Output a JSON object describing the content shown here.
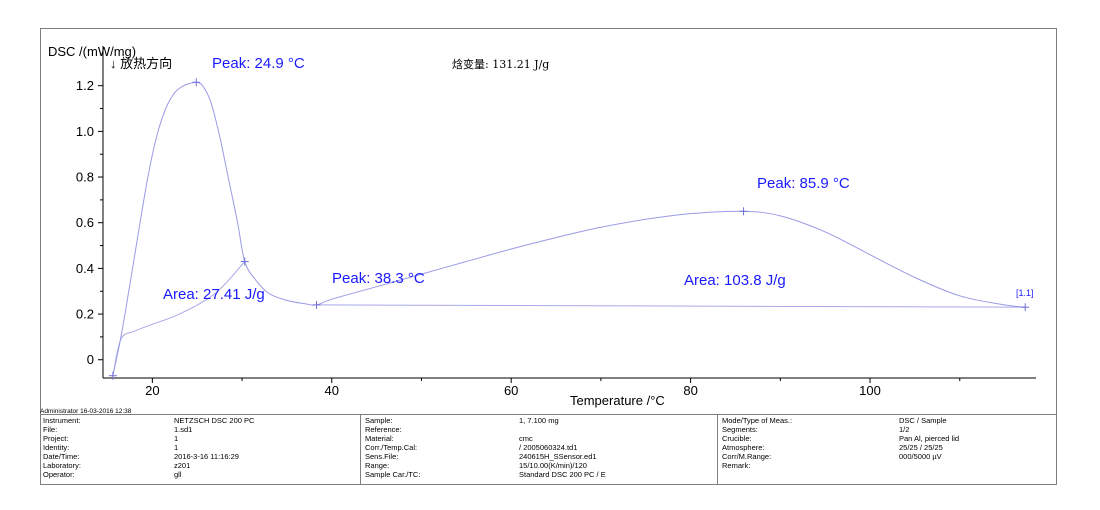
{
  "chart_data": {
    "type": "line",
    "ylabel": "DSC /(mW/mg)",
    "xlabel": "Temperature /°C",
    "exo_direction": "↓ 放热方向",
    "enthalpy_label": "焓变量: 131.21 J/g",
    "xlim": [
      14.5,
      118.5
    ],
    "ylim": [
      -0.08,
      1.26
    ],
    "x_ticks": [
      20,
      40,
      60,
      80,
      100
    ],
    "y_ticks": [
      0,
      0.2,
      0.4,
      0.6,
      0.8,
      1.0,
      1.2
    ],
    "x_tick_labels": [
      "20",
      "40",
      "60",
      "80",
      "100"
    ],
    "y_tick_labels": [
      "0",
      "0.2",
      "0.4",
      "0.6",
      "0.8",
      "1.0",
      "1.2"
    ],
    "grid": false,
    "series": [
      {
        "color": "#9a9ae6",
        "x": [
          15.6,
          16.5,
          17.5,
          18.5,
          19.5,
          20.5,
          21.5,
          22.5,
          23.5,
          24.2,
          24.9,
          25.6,
          26.5,
          27.5,
          28.5,
          29.5,
          30.3,
          31.5,
          33.0,
          35.0,
          37.0,
          38.3,
          40,
          45,
          50,
          55,
          60,
          65,
          70,
          75,
          80,
          85.9,
          90,
          95,
          100,
          105,
          110,
          115,
          117.3
        ],
        "y": [
          -0.07,
          0.1,
          0.33,
          0.57,
          0.8,
          0.98,
          1.1,
          1.17,
          1.2,
          1.21,
          1.215,
          1.2,
          1.13,
          0.98,
          0.79,
          0.6,
          0.43,
          0.35,
          0.29,
          0.26,
          0.245,
          0.24,
          0.265,
          0.32,
          0.375,
          0.43,
          0.485,
          0.535,
          0.58,
          0.615,
          0.64,
          0.65,
          0.63,
          0.56,
          0.46,
          0.36,
          0.28,
          0.24,
          0.23
        ]
      }
    ],
    "baselines": [
      {
        "x": [
          15.6,
          16.5,
          18,
          20,
          23,
          27,
          30.3
        ],
        "y": [
          -0.07,
          0.09,
          0.125,
          0.155,
          0.2,
          0.29,
          0.43
        ]
      },
      {
        "x": [
          38.3,
          117.3
        ],
        "y": [
          0.24,
          0.23
        ]
      }
    ],
    "markers": [
      {
        "x": 15.6,
        "y": -0.07
      },
      {
        "x": 24.9,
        "y": 1.215
      },
      {
        "x": 30.3,
        "y": 0.43
      },
      {
        "x": 38.3,
        "y": 0.24
      },
      {
        "x": 85.9,
        "y": 0.65
      },
      {
        "x": 117.3,
        "y": 0.23
      }
    ],
    "annotations": [
      {
        "text": "Peak: 24.9 °C"
      },
      {
        "text": "Area: 27.41 J/g"
      },
      {
        "text": "Peak: 38.3 °C"
      },
      {
        "text": "Peak: 85.9 °C"
      },
      {
        "text": "Area: 103.8 J/g"
      },
      {
        "text": "[1.1]"
      }
    ]
  },
  "footer": {
    "admin_line": "Administrator   16-03-2016 12:38",
    "columns": [
      {
        "rows": [
          {
            "key": "Instrument:",
            "value": "NETZSCH DSC 200 PC"
          },
          {
            "key": "File:",
            "value": "1.sd1"
          },
          {
            "key": "Project:",
            "value": "1"
          },
          {
            "key": "Identity:",
            "value": "1"
          },
          {
            "key": "Date/Time:",
            "value": "2016-3-16 11:16:29"
          },
          {
            "key": "Laboratory:",
            "value": "z201"
          },
          {
            "key": "Operator:",
            "value": "gll"
          }
        ]
      },
      {
        "rows": [
          {
            "key": "Sample:",
            "value": "1, 7.100 mg"
          },
          {
            "key": "Reference:",
            "value": ""
          },
          {
            "key": "Material:",
            "value": "cmc"
          },
          {
            "key": "Corr./Temp.Cal:",
            "value": " / 2005060324.td1"
          },
          {
            "key": "Sens.File:",
            "value": "240615H_SSensor.ed1"
          },
          {
            "key": "Range:",
            "value": "15/10.00(K/min)/120"
          },
          {
            "key": "Sample Car./TC:",
            "value": "Standard DSC 200 PC / E"
          }
        ]
      },
      {
        "rows": [
          {
            "key": "Mode/Type of Meas.:",
            "value": "DSC / Sample"
          },
          {
            "key": "Segments:",
            "value": "1/2"
          },
          {
            "key": "Crucible:",
            "value": "Pan Al, pierced lid"
          },
          {
            "key": "Atmosphere:",
            "value": "25/25 / 25/25"
          },
          {
            "key": "Corr/M.Range:",
            "value": "000/5000 µV"
          },
          {
            "key": "Remark:",
            "value": ""
          }
        ]
      }
    ]
  }
}
